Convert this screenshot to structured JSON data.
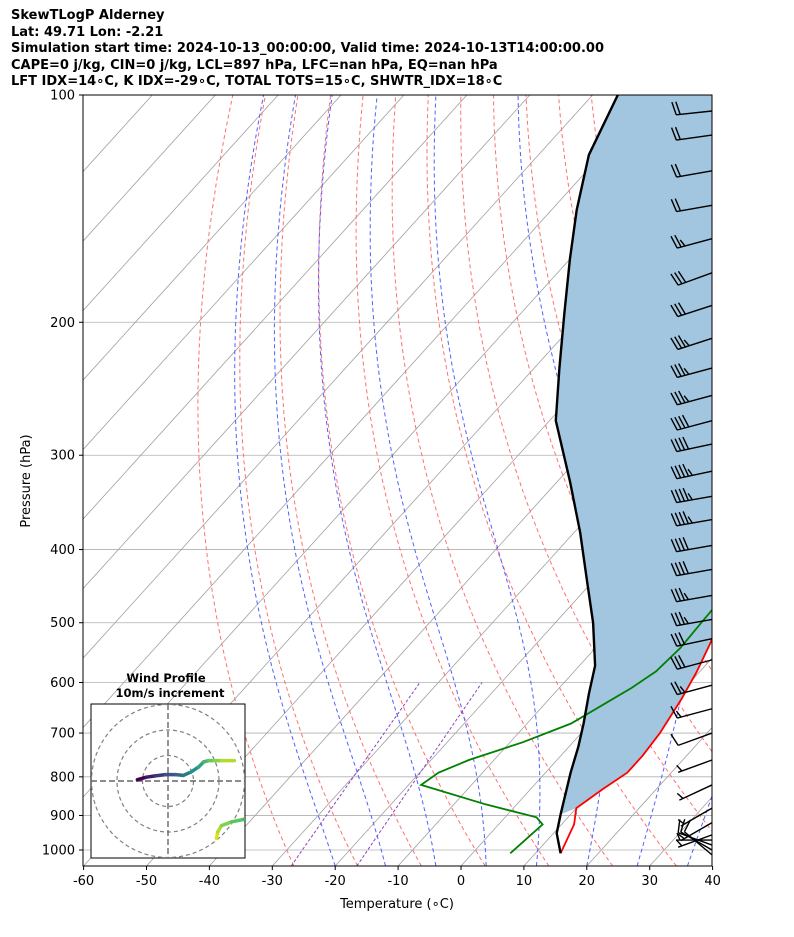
{
  "header": {
    "line1": "SkewTLogP Alderney",
    "line2": "Lat: 49.71   Lon: -2.21",
    "line3": "Simulation start time: 2024-10-13_00:00:00, Valid time: 2024-10-13T14:00:00.00",
    "line4": "CAPE=0 j/kg, CIN=0 j/kg, LCL=897 hPa, LFC=nan hPa, EQ=nan hPa",
    "line5": "LFT IDX=14∘C, K IDX=-29∘C, TOTAL TOTS=15∘C, SHWTR_IDX=18∘C"
  },
  "chart_data": {
    "type": "line",
    "subtype": "skew-T log-P diagram",
    "xlabel": "Temperature (∘C)",
    "ylabel": "Pressure (hPa)",
    "xlim": [
      -60,
      40
    ],
    "ylim_hpa": [
      1050,
      100
    ],
    "x_ticks": [
      -60,
      -50,
      -40,
      -30,
      -20,
      -10,
      0,
      10,
      20,
      30,
      40
    ],
    "y_ticks": [
      1000,
      900,
      800,
      700,
      600,
      500,
      400,
      300,
      200,
      100
    ],
    "colors": {
      "temperature": "#ff0000",
      "dewpoint": "#008000",
      "parcel": "#000000",
      "cape_fill": "#a2c6df",
      "dry_adiabat": "#ff7070",
      "moist_adiabat": "#5060ff",
      "mixing_ratio": "#9040c0",
      "isotherm": "#a0a0a0",
      "hodograph_ring": "#808080"
    },
    "series": [
      {
        "key": "temperature",
        "points": [
          [
            14,
            1010
          ],
          [
            12,
            925
          ],
          [
            10,
            880
          ],
          [
            11.5,
            830
          ],
          [
            13,
            790
          ],
          [
            13,
            750
          ],
          [
            12.5,
            700
          ],
          [
            11,
            630
          ],
          [
            9.5,
            580
          ],
          [
            7.5,
            530
          ],
          [
            5,
            490
          ],
          [
            4,
            460
          ],
          [
            5.5,
            430
          ],
          [
            7.5,
            400
          ],
          [
            8.5,
            385
          ],
          [
            8,
            360
          ],
          [
            6.5,
            335
          ],
          [
            4.5,
            310
          ],
          [
            2.5,
            285
          ],
          [
            0,
            260
          ],
          [
            -3.5,
            235
          ],
          [
            -8,
            212
          ],
          [
            -12,
            193
          ],
          [
            -14,
            183
          ],
          [
            -13,
            175
          ],
          [
            -8,
            168
          ],
          [
            -3,
            160
          ],
          [
            -1,
            152
          ],
          [
            0,
            145
          ],
          [
            1.5,
            135
          ],
          [
            2,
            125
          ],
          [
            2.8,
            115
          ],
          [
            3,
            108
          ],
          [
            3.5,
            100
          ]
        ]
      },
      {
        "key": "dewpoint",
        "points": [
          [
            6,
            1010
          ],
          [
            7,
            925
          ],
          [
            5,
            905
          ],
          [
            -5,
            870
          ],
          [
            -18,
            820
          ],
          [
            -17,
            790
          ],
          [
            -14,
            760
          ],
          [
            -8,
            720
          ],
          [
            -3,
            680
          ],
          [
            -0.5,
            640
          ],
          [
            1.5,
            610
          ],
          [
            3,
            580
          ],
          [
            3.5,
            540
          ],
          [
            3.2,
            500
          ],
          [
            3,
            470
          ],
          [
            4,
            445
          ],
          [
            6.5,
            425
          ],
          [
            8,
            405
          ],
          [
            7,
            370
          ],
          [
            5.5,
            340
          ],
          [
            3,
            315
          ],
          [
            -0.5,
            285
          ],
          [
            -3.5,
            260
          ],
          [
            -6,
            245
          ],
          [
            -8.5,
            230
          ],
          [
            -10.5,
            212
          ],
          [
            -12.5,
            195
          ],
          [
            -14.5,
            185
          ],
          [
            -15.5,
            178
          ],
          [
            -15,
            172
          ],
          [
            -15,
            162
          ],
          [
            -15,
            155
          ],
          [
            -14,
            147
          ],
          [
            -13,
            140
          ],
          [
            -12,
            132
          ],
          [
            -10,
            118
          ],
          [
            -7,
            108
          ],
          [
            -5,
            100
          ]
        ]
      },
      {
        "key": "parcel",
        "points": [
          [
            14,
            1010
          ],
          [
            10.5,
            950
          ],
          [
            8.4,
            897
          ],
          [
            4,
            790
          ],
          [
            1.5,
            730
          ],
          [
            -1,
            680
          ],
          [
            -4.5,
            620
          ],
          [
            -7.5,
            570
          ],
          [
            -14,
            500
          ],
          [
            -21,
            440
          ],
          [
            -29,
            380
          ],
          [
            -38,
            325
          ],
          [
            -49,
            270
          ],
          [
            -56,
            230
          ],
          [
            -63,
            195
          ],
          [
            -70,
            165
          ],
          [
            -76,
            142
          ],
          [
            -82,
            120
          ],
          [
            -86,
            100
          ]
        ]
      }
    ],
    "wind_barbs": {
      "pressures": [
        1015,
        1000,
        985,
        970,
        955,
        920,
        880,
        820,
        760,
        700,
        650,
        605,
        560,
        525,
        495,
        460,
        425,
        395,
        365,
        340,
        315,
        290,
        270,
        250,
        230,
        210,
        190,
        172,
        155,
        140,
        126,
        113,
        105
      ],
      "speeds_kt": [
        10,
        10,
        10,
        5,
        5,
        5,
        5,
        5,
        5,
        10,
        15,
        25,
        30,
        30,
        35,
        35,
        40,
        40,
        45,
        45,
        45,
        40,
        40,
        35,
        35,
        35,
        30,
        30,
        25,
        20,
        20,
        20,
        20
      ],
      "directions_deg": [
        310,
        300,
        290,
        270,
        250,
        240,
        240,
        245,
        250,
        250,
        255,
        255,
        255,
        258,
        260,
        260,
        260,
        260,
        260,
        260,
        258,
        258,
        255,
        255,
        255,
        252,
        252,
        250,
        255,
        260,
        260,
        262,
        264
      ]
    },
    "hodograph": {
      "title": "Wind Profile",
      "subtitle": "10m/s increment",
      "ring_step_ms": 10,
      "u_v_ms": [
        [
          12,
          3.5
        ],
        [
          12.5,
          6
        ],
        [
          14,
          8.5
        ],
        [
          18,
          10
        ],
        [
          23,
          11
        ],
        [
          27,
          11
        ],
        [
          29,
          12
        ],
        [
          28,
          16
        ],
        [
          29.5,
          19
        ],
        [
          31,
          20.5
        ],
        [
          35,
          21
        ],
        [
          42,
          21.5
        ]
      ],
      "upper_u_v_ms": [
        [
          0,
          4.5
        ],
        [
          3.5,
          5.5
        ],
        [
          7,
          6
        ],
        [
          11,
          6.5
        ],
        [
          15,
          6.5
        ],
        [
          18,
          6.2
        ],
        [
          21,
          7.5
        ],
        [
          24,
          9.5
        ],
        [
          26,
          11.5
        ],
        [
          28,
          12
        ],
        [
          30,
          12
        ],
        [
          33,
          12
        ],
        [
          38,
          12
        ]
      ]
    }
  }
}
